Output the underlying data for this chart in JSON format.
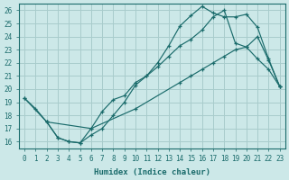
{
  "xlabel": "Humidex (Indice chaleur)",
  "bg_color": "#cce8e8",
  "grid_color": "#a8cccc",
  "line_color": "#1a6b6b",
  "xlim": [
    -0.5,
    23.5
  ],
  "ylim": [
    15.5,
    26.5
  ],
  "xticks": [
    0,
    1,
    2,
    3,
    4,
    5,
    6,
    7,
    8,
    9,
    10,
    11,
    12,
    13,
    14,
    15,
    16,
    17,
    18,
    19,
    20,
    21,
    22,
    23
  ],
  "yticks": [
    16,
    17,
    18,
    19,
    20,
    21,
    22,
    23,
    24,
    25,
    26
  ],
  "curve1_x": [
    0,
    1,
    2,
    3,
    4,
    5,
    6,
    7,
    8,
    9,
    10,
    11,
    12,
    13,
    14,
    15,
    16,
    17,
    18,
    19,
    20,
    21,
    22,
    23
  ],
  "curve1_y": [
    19.3,
    18.5,
    17.5,
    16.3,
    16.0,
    15.9,
    17.0,
    18.3,
    19.2,
    19.5,
    20.5,
    21.0,
    22.0,
    23.3,
    24.8,
    25.6,
    26.3,
    25.8,
    25.5,
    25.5,
    25.7,
    24.7,
    22.3,
    20.2
  ],
  "curve2_x": [
    2,
    3,
    4,
    5,
    6,
    7,
    8,
    9,
    10,
    11,
    12,
    13,
    14,
    15,
    16,
    17,
    18,
    19,
    20,
    21,
    22,
    23
  ],
  "curve2_y": [
    17.5,
    16.3,
    16.0,
    15.9,
    16.5,
    17.0,
    18.0,
    19.0,
    20.3,
    21.0,
    21.7,
    22.5,
    23.3,
    23.8,
    24.5,
    25.5,
    26.0,
    23.5,
    23.2,
    22.3,
    21.5,
    20.2
  ],
  "curve3_x": [
    0,
    2,
    6,
    10,
    14,
    15,
    16,
    17,
    18,
    19,
    20,
    21,
    22,
    23
  ],
  "curve3_y": [
    19.3,
    17.5,
    17.0,
    18.5,
    20.5,
    21.0,
    21.5,
    22.0,
    22.5,
    23.0,
    23.2,
    24.0,
    22.2,
    20.2
  ]
}
